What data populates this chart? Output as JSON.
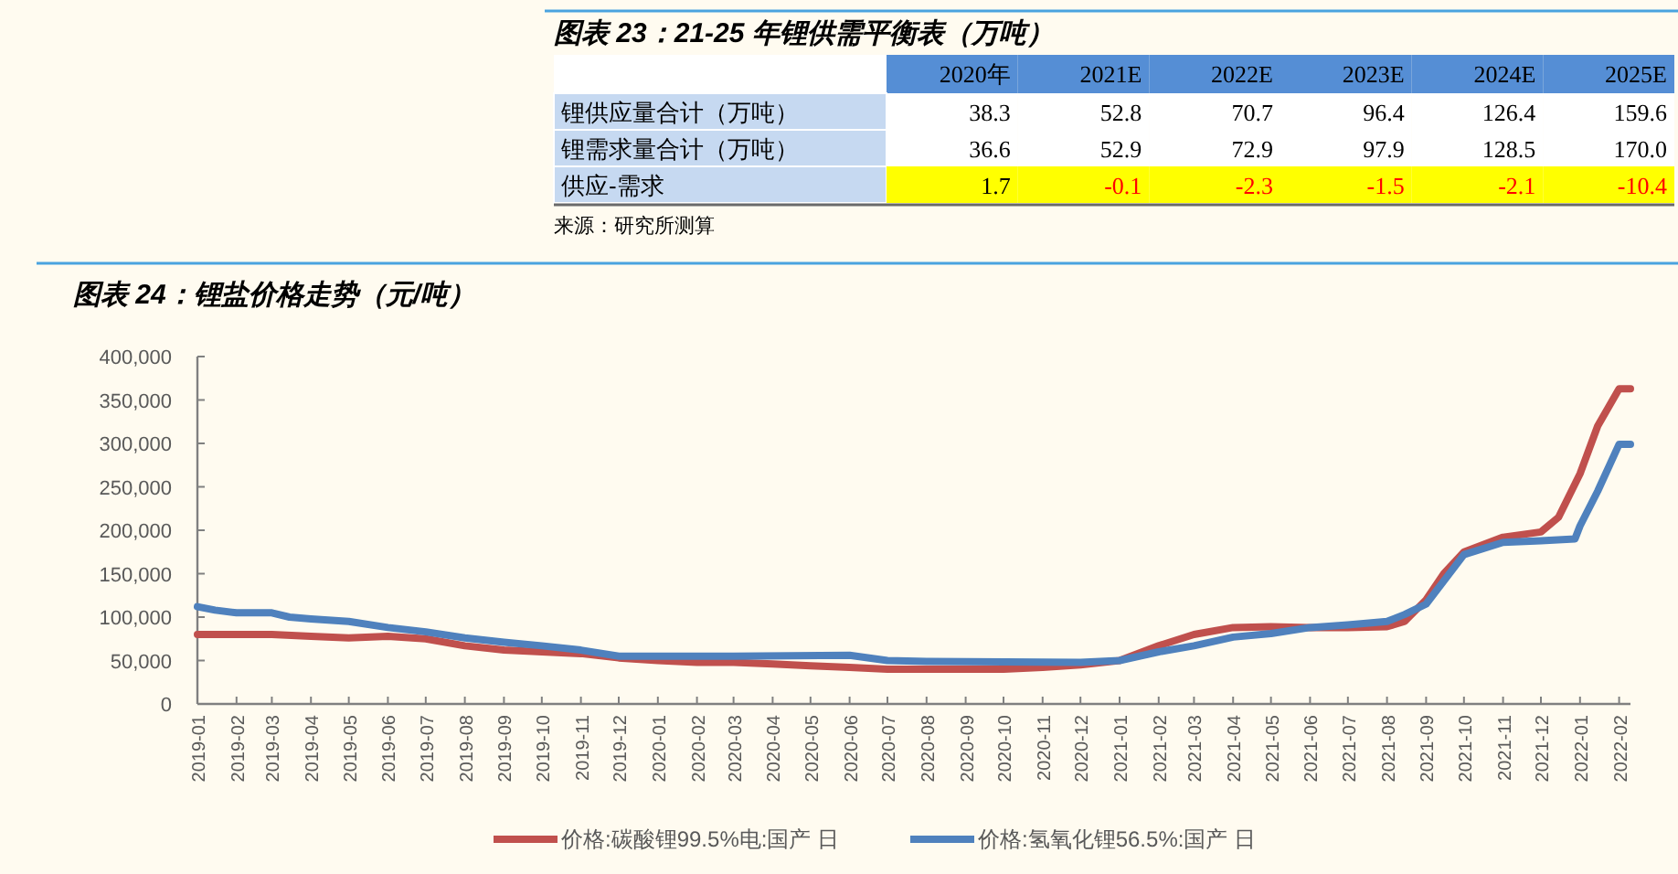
{
  "chart_data": [
    {
      "type": "heatmap",
      "title": "图表 23：21-25 年锂供需平衡表（万吨）",
      "categories": [
        "2020年",
        "2021E",
        "2022E",
        "2023E",
        "2024E",
        "2025E"
      ],
      "y_categories": [
        "锂供应量合计（万吨）",
        "锂需求量合计（万吨）",
        "供应-需求"
      ],
      "cells": [
        [
          38.3,
          52.8,
          70.7,
          96.4,
          126.4,
          159.6
        ],
        [
          36.6,
          52.9,
          72.9,
          97.9,
          128.5,
          170.0
        ],
        [
          1.7,
          -0.1,
          -2.3,
          -1.5,
          -2.1,
          -10.4
        ]
      ],
      "cell_labels": [
        [
          "38.3",
          "52.8",
          "70.7",
          "96.4",
          "126.4",
          "159.6"
        ],
        [
          "36.6",
          "52.9",
          "72.9",
          "97.9",
          "128.5",
          "170.0"
        ],
        [
          "1.7",
          "-0.1",
          "-2.3",
          "-1.5",
          "-2.1",
          "-10.4"
        ]
      ],
      "annotations": [
        "来源：研究所测算"
      ]
    },
    {
      "type": "line",
      "title": "图表 24：锂盐价格走势（元/吨）",
      "xlim": [
        "2019-01-01",
        "2022-02-10"
      ],
      "xticks": [
        "2019-01",
        "2019-02",
        "2019-03",
        "2019-04",
        "2019-05",
        "2019-06",
        "2019-07",
        "2019-08",
        "2019-09",
        "2019-10",
        "2019-11",
        "2019-12",
        "2020-01",
        "2020-02",
        "2020-03",
        "2020-04",
        "2020-05",
        "2020-06",
        "2020-07",
        "2020-08",
        "2020-09",
        "2020-10",
        "2020-11",
        "2020-12",
        "2021-01",
        "2021-02",
        "2021-03",
        "2021-04",
        "2021-05",
        "2021-06",
        "2021-07",
        "2021-08",
        "2021-09",
        "2021-10",
        "2021-11",
        "2021-12",
        "2022-01",
        "2022-02"
      ],
      "ylim": [
        0,
        400000
      ],
      "yticks": [
        {
          "value": 0,
          "label": "0"
        },
        {
          "value": 50000,
          "label": "50,000"
        },
        {
          "value": 100000,
          "label": "100,000"
        },
        {
          "value": 150000,
          "label": "150,000"
        },
        {
          "value": 200000,
          "label": "200,000"
        },
        {
          "value": 250000,
          "label": "250,000"
        },
        {
          "value": 300000,
          "label": "300,000"
        },
        {
          "value": 350000,
          "label": "350,000"
        },
        {
          "value": 400000,
          "label": "400,000"
        }
      ],
      "legend": "bottom",
      "series": [
        {
          "name": "价格:碳酸锂99.5%电:国产 日",
          "color": "#c0504d",
          "x": [
            "2019-01-01",
            "2019-03-01",
            "2019-04-01",
            "2019-05-01",
            "2019-06-01",
            "2019-07-01",
            "2019-08-01",
            "2019-09-01",
            "2019-10-01",
            "2019-11-01",
            "2019-12-01",
            "2020-01-01",
            "2020-02-01",
            "2020-03-01",
            "2020-04-01",
            "2020-05-01",
            "2020-06-01",
            "2020-07-01",
            "2020-08-01",
            "2020-09-01",
            "2020-10-01",
            "2020-11-01",
            "2020-12-01",
            "2021-01-01",
            "2021-02-01",
            "2021-03-01",
            "2021-04-01",
            "2021-05-01",
            "2021-06-01",
            "2021-07-01",
            "2021-08-01",
            "2021-08-15",
            "2021-09-01",
            "2021-09-15",
            "2021-10-01",
            "2021-11-01",
            "2021-12-01",
            "2021-12-15",
            "2022-01-01",
            "2022-01-15",
            "2022-02-01",
            "2022-02-10"
          ],
          "values": [
            80000,
            80000,
            78000,
            76000,
            78000,
            75000,
            67000,
            62000,
            60000,
            58000,
            53000,
            50000,
            48000,
            48000,
            46000,
            44000,
            42000,
            40000,
            40000,
            40000,
            40000,
            42000,
            45000,
            50000,
            67000,
            80000,
            88000,
            89000,
            88000,
            88000,
            89000,
            95000,
            120000,
            150000,
            175000,
            192000,
            198000,
            215000,
            265000,
            320000,
            363000,
            363000
          ]
        },
        {
          "name": "价格:氢氧化锂56.5%:国产 日",
          "color": "#4f81bd",
          "x": [
            "2019-01-01",
            "2019-01-15",
            "2019-02-01",
            "2019-03-01",
            "2019-03-15",
            "2019-04-01",
            "2019-05-01",
            "2019-06-01",
            "2019-07-01",
            "2019-08-01",
            "2019-09-01",
            "2019-10-01",
            "2019-11-01",
            "2019-12-01",
            "2020-01-01",
            "2020-03-01",
            "2020-06-01",
            "2020-07-01",
            "2020-08-01",
            "2020-12-01",
            "2021-01-01",
            "2021-02-01",
            "2021-03-01",
            "2021-04-01",
            "2021-05-01",
            "2021-06-01",
            "2021-07-01",
            "2021-08-01",
            "2021-08-15",
            "2021-09-01",
            "2021-10-01",
            "2021-11-01",
            "2021-12-01",
            "2021-12-28",
            "2022-01-01",
            "2022-01-15",
            "2022-02-01",
            "2022-02-10"
          ],
          "values": [
            112000,
            108000,
            105000,
            105000,
            100000,
            98000,
            95000,
            88000,
            83000,
            76000,
            71000,
            67000,
            62000,
            55000,
            55000,
            55000,
            56000,
            50000,
            49000,
            48000,
            50000,
            60000,
            67000,
            77000,
            81000,
            88000,
            91000,
            95000,
            103000,
            115000,
            172000,
            186000,
            188000,
            190000,
            205000,
            245000,
            299000,
            299000
          ]
        }
      ]
    }
  ]
}
